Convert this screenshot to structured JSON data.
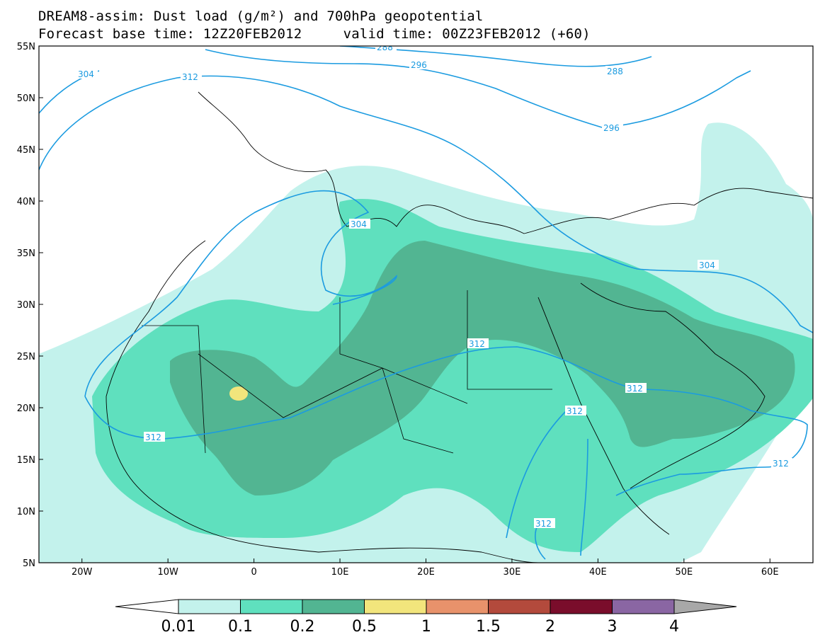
{
  "title": {
    "line1": "DREAM8-assim: Dust load (g/m²) and 700hPa geopotential",
    "line2": "Forecast base time: 12Z20FEB2012     valid time: 00Z23FEB2012 (+60)"
  },
  "map": {
    "lon_range": [
      -25,
      65
    ],
    "lat_range": [
      5,
      55
    ],
    "lat_labels": [
      "55N",
      "50N",
      "45N",
      "40N",
      "35N",
      "30N",
      "25N",
      "20N",
      "15N",
      "10N",
      "5N"
    ],
    "lon_labels": [
      "20W",
      "10W",
      "0",
      "10E",
      "20E",
      "30E",
      "40E",
      "50E",
      "60E"
    ],
    "contour_labels": [
      "288",
      "296",
      "296",
      "304",
      "304",
      "304",
      "312",
      "312",
      "312",
      "312",
      "312",
      "312",
      "312",
      "288"
    ]
  },
  "colorbar": {
    "levels": [
      "0.01",
      "0.1",
      "0.2",
      "0.5",
      "1",
      "1.5",
      "2",
      "3",
      "4"
    ],
    "colors": [
      "#c3f2ec",
      "#5fe0be",
      "#52b592",
      "#f2e57c",
      "#e8926b",
      "#b34a3c",
      "#7a0d2b",
      "#8a66a3",
      "#a8a8a8"
    ]
  }
}
